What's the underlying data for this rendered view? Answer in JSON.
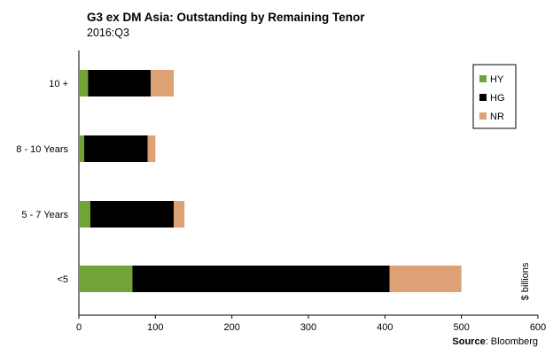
{
  "chart_data": {
    "type": "bar",
    "orientation": "horizontal",
    "stacked": true,
    "title": "G3 ex DM Asia:  Outstanding by Remaining Tenor",
    "subtitle": "2016:Q3",
    "categories": [
      "10 +",
      "8 - 10 Years",
      "5 - 7 Years",
      "<5"
    ],
    "series": [
      {
        "name": "HY",
        "color": "#72a337",
        "values": [
          12,
          7,
          15,
          70
        ]
      },
      {
        "name": "HG",
        "color": "#000000",
        "values": [
          82,
          83,
          109,
          336
        ]
      },
      {
        "name": "NR",
        "color": "#dea176",
        "values": [
          30,
          10,
          14,
          94
        ]
      }
    ],
    "xlim": [
      0,
      600
    ],
    "xticks": [
      "0",
      "100",
      "200",
      "300",
      "400",
      "500",
      "600"
    ],
    "ylabel_right": "$ billions",
    "legend_position": "top-right",
    "grid": false
  },
  "source": {
    "label": "Source",
    "text": ": Bloomberg"
  }
}
